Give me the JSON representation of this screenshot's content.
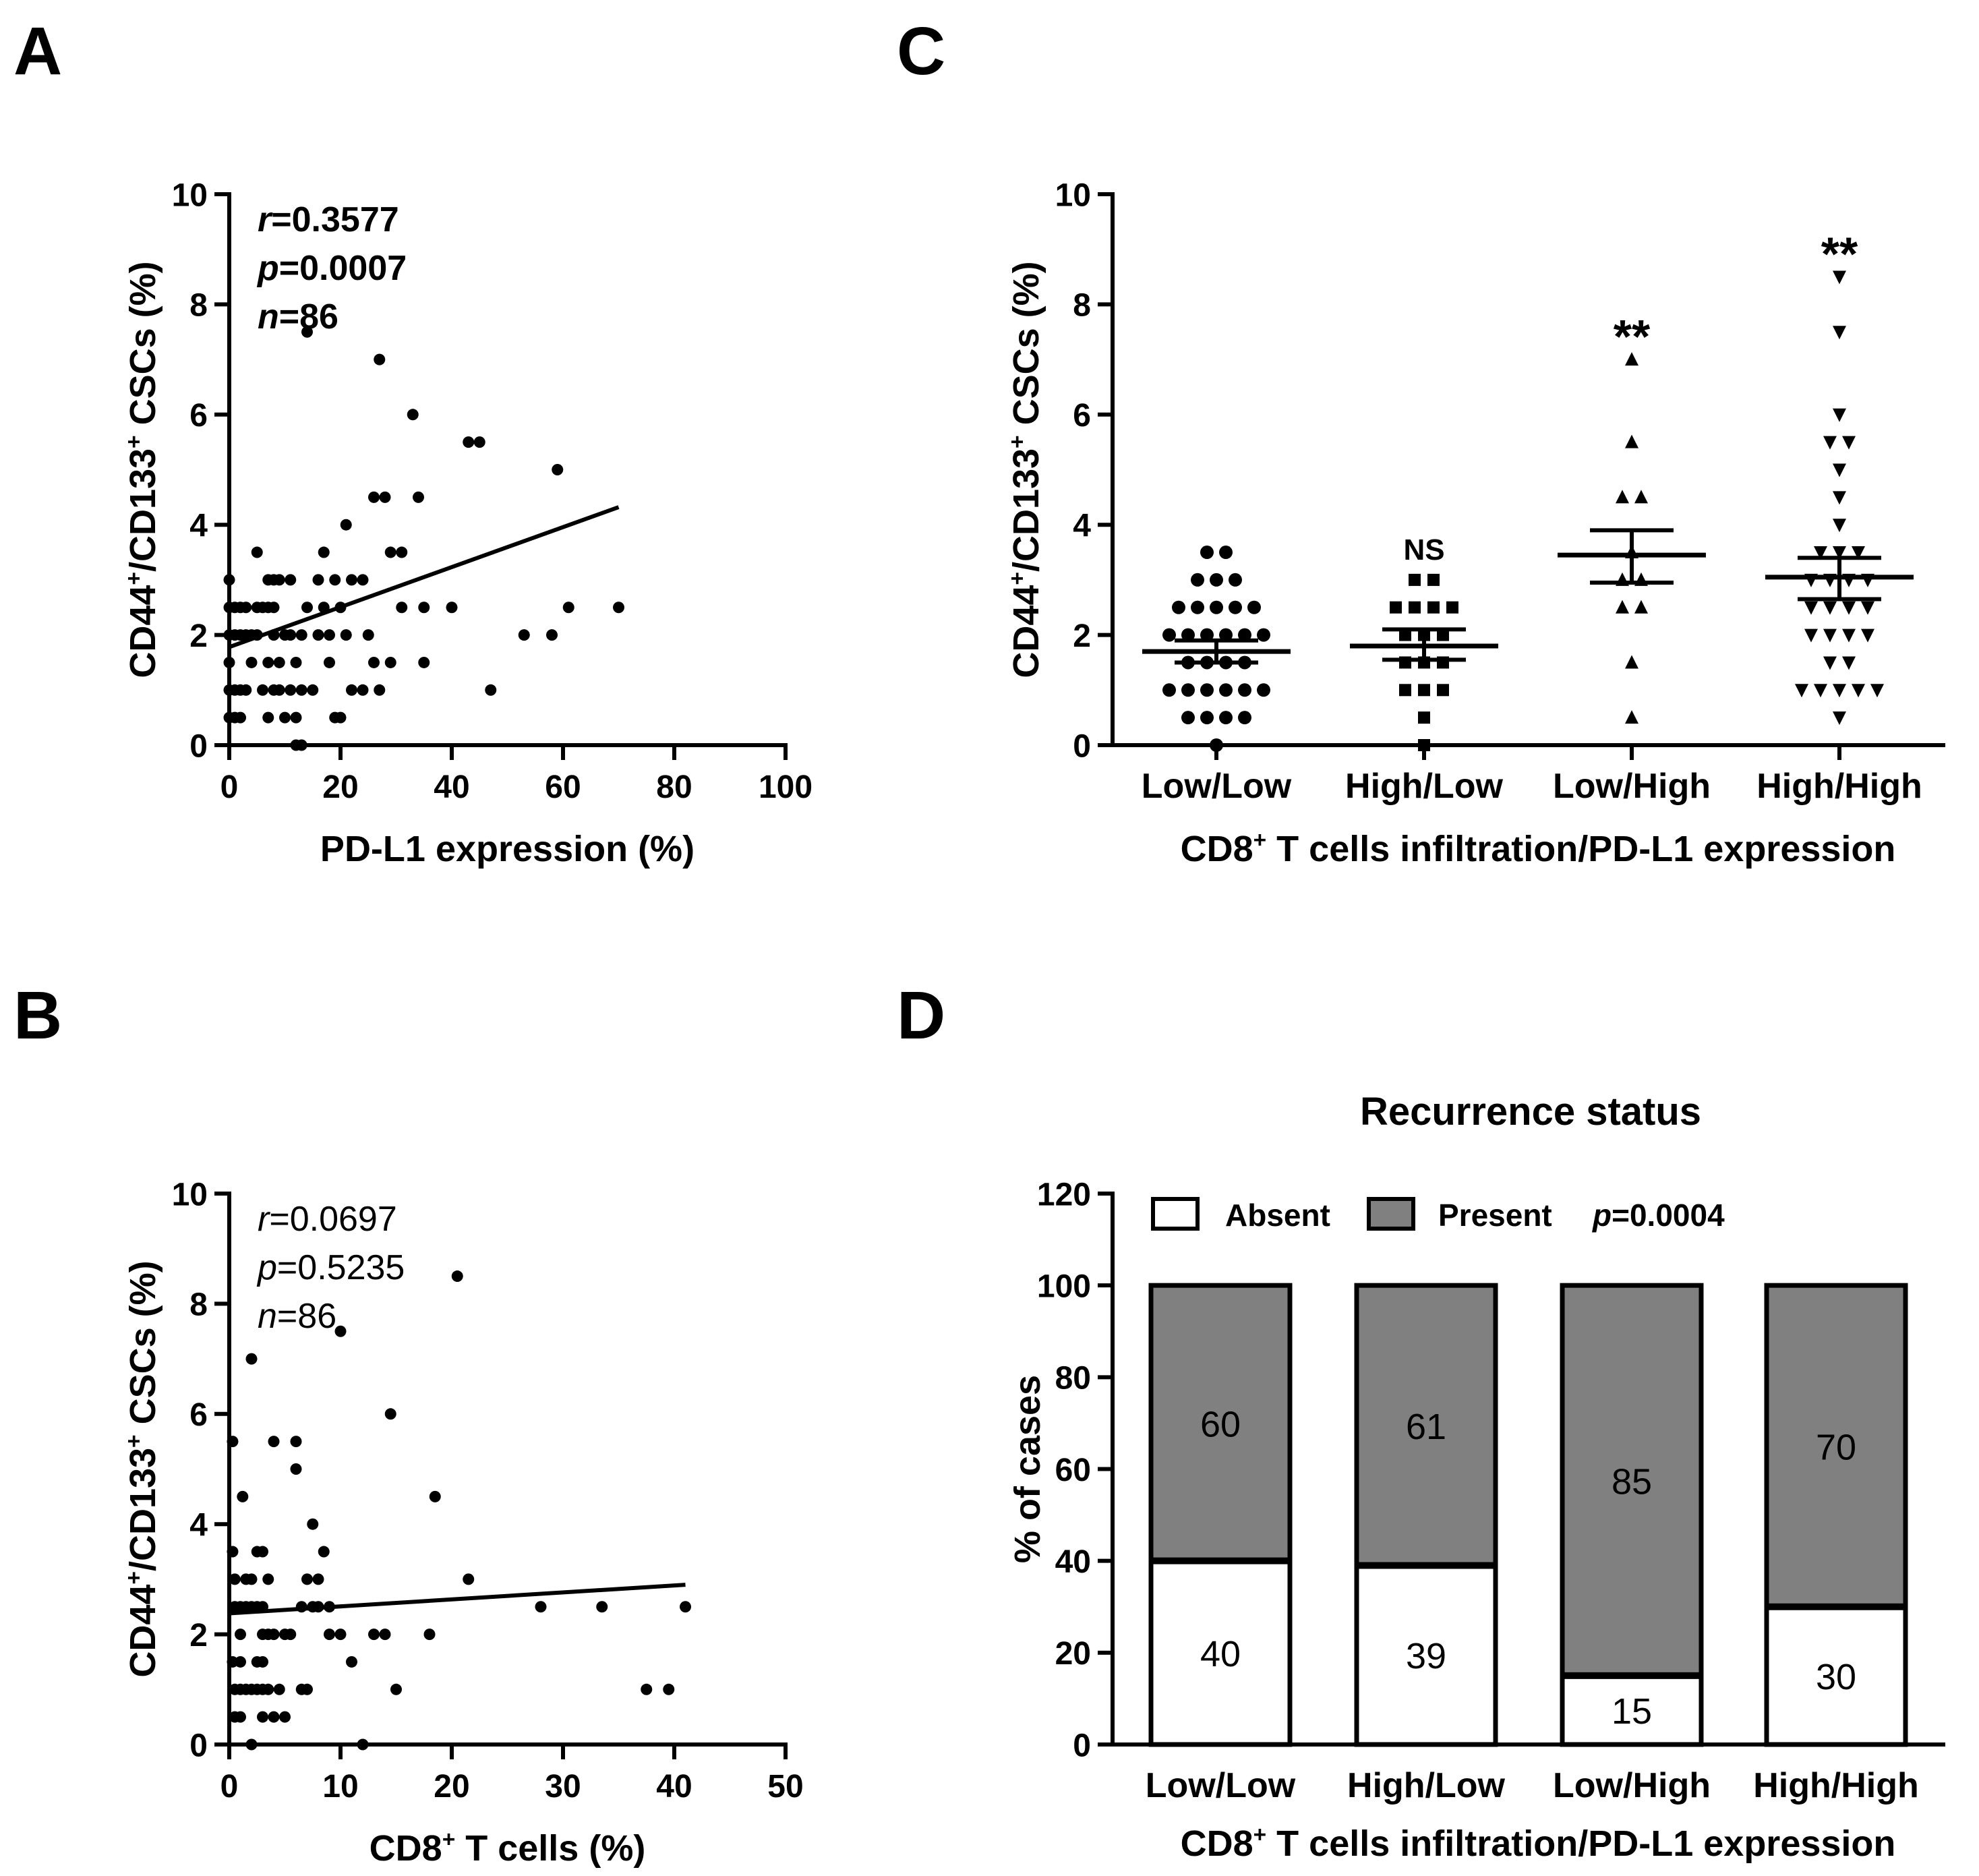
{
  "panel_letters": [
    "A",
    "B",
    "C",
    "D"
  ],
  "chart_data": [
    {
      "panel": "A",
      "type": "scatter",
      "xlabel": "PD-L1 expression (%)",
      "ylabel_parts": [
        "CD44",
        "+",
        "/CD133",
        "+",
        " CSCs (%)"
      ],
      "xlim": [
        0,
        100
      ],
      "ylim": [
        0,
        10
      ],
      "xticks": [
        0,
        20,
        40,
        60,
        80,
        100
      ],
      "yticks": [
        0,
        2,
        4,
        6,
        8,
        10
      ],
      "stats": [
        {
          "sym": "r",
          "val": "=0.3577"
        },
        {
          "sym": "p",
          "val": "=0.0007"
        },
        {
          "sym": "n",
          "val": "=86"
        }
      ],
      "fit": {
        "x": [
          0,
          70
        ],
        "y": [
          1.78,
          4.32
        ]
      },
      "points": [
        [
          0,
          0.5
        ],
        [
          0,
          1
        ],
        [
          0,
          1.5
        ],
        [
          0,
          2
        ],
        [
          0,
          2.5
        ],
        [
          0,
          3
        ],
        [
          1,
          0.5
        ],
        [
          1,
          1
        ],
        [
          1,
          2
        ],
        [
          1,
          2.5
        ],
        [
          2,
          0.5
        ],
        [
          2,
          1
        ],
        [
          2,
          2
        ],
        [
          2,
          2.5
        ],
        [
          3,
          1
        ],
        [
          3,
          2
        ],
        [
          3,
          2.5
        ],
        [
          4,
          1.5
        ],
        [
          4,
          2
        ],
        [
          5,
          2
        ],
        [
          5,
          2.5
        ],
        [
          5,
          3.5
        ],
        [
          6,
          1
        ],
        [
          6,
          2.5
        ],
        [
          7,
          0.5
        ],
        [
          7,
          1.5
        ],
        [
          7,
          2.5
        ],
        [
          7,
          3
        ],
        [
          8,
          1
        ],
        [
          8,
          2
        ],
        [
          8,
          2.5
        ],
        [
          8,
          3
        ],
        [
          9,
          1
        ],
        [
          9,
          1.5
        ],
        [
          9,
          3
        ],
        [
          10,
          0.5
        ],
        [
          10,
          2
        ],
        [
          11,
          1
        ],
        [
          11,
          2
        ],
        [
          11,
          3
        ],
        [
          12,
          0
        ],
        [
          12,
          0.5
        ],
        [
          12,
          1.5
        ],
        [
          13,
          0
        ],
        [
          13,
          1
        ],
        [
          13,
          2
        ],
        [
          14,
          2.5
        ],
        [
          14,
          7.5
        ],
        [
          15,
          1
        ],
        [
          16,
          2
        ],
        [
          16,
          3
        ],
        [
          17,
          2.5
        ],
        [
          17,
          3.5
        ],
        [
          18,
          1.5
        ],
        [
          18,
          2
        ],
        [
          19,
          0.5
        ],
        [
          19,
          3
        ],
        [
          20,
          0.5
        ],
        [
          20,
          2.5
        ],
        [
          21,
          2
        ],
        [
          21,
          4
        ],
        [
          22,
          1
        ],
        [
          22,
          3
        ],
        [
          24,
          1
        ],
        [
          24,
          3
        ],
        [
          25,
          2
        ],
        [
          26,
          1.5
        ],
        [
          26,
          4.5
        ],
        [
          27,
          1
        ],
        [
          27,
          7
        ],
        [
          28,
          4.5
        ],
        [
          29,
          1.5
        ],
        [
          29,
          3.5
        ],
        [
          31,
          3.5
        ],
        [
          31,
          2.5
        ],
        [
          33,
          6
        ],
        [
          34,
          4.5
        ],
        [
          35,
          1.5
        ],
        [
          35,
          2.5
        ],
        [
          40,
          2.5
        ],
        [
          43,
          5.5
        ],
        [
          45,
          5.5
        ],
        [
          47,
          1
        ],
        [
          53,
          2
        ],
        [
          58,
          2
        ],
        [
          59,
          5
        ],
        [
          61,
          2.5
        ],
        [
          70,
          2.5
        ]
      ]
    },
    {
      "panel": "B",
      "type": "scatter",
      "xlabel_parts": [
        "CD8",
        "+",
        " T cells (%)"
      ],
      "ylabel_parts": [
        "CD44",
        "+",
        "/CD133",
        "+",
        " CSCs (%)"
      ],
      "xlim": [
        0,
        50
      ],
      "ylim": [
        0,
        10
      ],
      "xticks": [
        0,
        10,
        20,
        30,
        40,
        50
      ],
      "yticks": [
        0,
        2,
        4,
        6,
        8,
        10
      ],
      "stats": [
        {
          "sym": "r",
          "val": "=0.0697"
        },
        {
          "sym": "p",
          "val": "=0.5235"
        },
        {
          "sym": "n",
          "val": "=86"
        }
      ],
      "fit": {
        "x": [
          0,
          41
        ],
        "y": [
          2.38,
          2.9
        ]
      },
      "points": [
        [
          0.3,
          5.5
        ],
        [
          0.3,
          3.5
        ],
        [
          0.3,
          1.5
        ],
        [
          0.5,
          3
        ],
        [
          0.5,
          2.5
        ],
        [
          0.5,
          1
        ],
        [
          0.5,
          0.5
        ],
        [
          1,
          2.5
        ],
        [
          1,
          2
        ],
        [
          1,
          1.5
        ],
        [
          1,
          1
        ],
        [
          1,
          0.5
        ],
        [
          1.2,
          4.5
        ],
        [
          1.5,
          3
        ],
        [
          1.5,
          2.5
        ],
        [
          1.5,
          1
        ],
        [
          2,
          7
        ],
        [
          2,
          3
        ],
        [
          2,
          2.5
        ],
        [
          2,
          1
        ],
        [
          2,
          0
        ],
        [
          2.5,
          3.5
        ],
        [
          2.5,
          2.5
        ],
        [
          2.5,
          1.5
        ],
        [
          2.5,
          1
        ],
        [
          3,
          3.5
        ],
        [
          3,
          2.5
        ],
        [
          3,
          2
        ],
        [
          3,
          1.5
        ],
        [
          3,
          1
        ],
        [
          3,
          0.5
        ],
        [
          3.5,
          3
        ],
        [
          3.5,
          2
        ],
        [
          3.5,
          1
        ],
        [
          4,
          5.5
        ],
        [
          4,
          2
        ],
        [
          4,
          0.5
        ],
        [
          4.5,
          1
        ],
        [
          5,
          2
        ],
        [
          5,
          0.5
        ],
        [
          5.5,
          2
        ],
        [
          6,
          5.5
        ],
        [
          6,
          5
        ],
        [
          6.5,
          2.5
        ],
        [
          6.5,
          1
        ],
        [
          7,
          3
        ],
        [
          7,
          1
        ],
        [
          7.5,
          4
        ],
        [
          7.5,
          2.5
        ],
        [
          8,
          3
        ],
        [
          8,
          2.5
        ],
        [
          8.5,
          3.5
        ],
        [
          9,
          2.5
        ],
        [
          9,
          2
        ],
        [
          10,
          7.5
        ],
        [
          10,
          2
        ],
        [
          11,
          1.5
        ],
        [
          12,
          0
        ],
        [
          13,
          2
        ],
        [
          14,
          2
        ],
        [
          14.5,
          6
        ],
        [
          15,
          1
        ],
        [
          18,
          2
        ],
        [
          18.5,
          4.5
        ],
        [
          20.5,
          8.5
        ],
        [
          21.5,
          3
        ],
        [
          28,
          2.5
        ],
        [
          33.5,
          2.5
        ],
        [
          37.5,
          1
        ],
        [
          39.5,
          1
        ],
        [
          41,
          2.5
        ]
      ]
    },
    {
      "panel": "C",
      "type": "scatter",
      "xlabel_parts": [
        "CD8",
        "+",
        " T cells infiltration/PD-L1 expression"
      ],
      "ylabel_parts": [
        "CD44",
        "+",
        "/CD133",
        "+",
        " CSCs (%)"
      ],
      "ylim": [
        0,
        10
      ],
      "yticks": [
        0,
        2,
        4,
        6,
        8,
        10
      ],
      "categories": [
        "Low/Low",
        "High/Low",
        "Low/High",
        "High/High"
      ],
      "series": [
        {
          "name": "Low/Low",
          "marker": "circle",
          "mean": 1.7,
          "sem_low": 1.5,
          "sem_high": 1.9,
          "annotation": "",
          "values": [
            3.5,
            3.5,
            3,
            3,
            3,
            2.5,
            2.5,
            2.5,
            2.5,
            2.5,
            2,
            2,
            2,
            2,
            2,
            2,
            1.5,
            1.5,
            1.5,
            1.5,
            1,
            1,
            1,
            1,
            1,
            1,
            0.5,
            0.5,
            0.5,
            0.5,
            0
          ]
        },
        {
          "name": "High/Low",
          "marker": "square",
          "mean": 1.8,
          "sem_low": 1.55,
          "sem_high": 2.1,
          "annotation": "NS",
          "values": [
            3,
            3,
            2.5,
            2.5,
            2.5,
            2.5,
            2,
            2,
            2,
            1.5,
            1.5,
            1.5,
            1,
            1,
            1,
            0.5,
            0
          ]
        },
        {
          "name": "Low/High",
          "marker": "triangle",
          "mean": 3.45,
          "sem_low": 2.95,
          "sem_high": 3.9,
          "annotation": "**",
          "values": [
            7,
            5.5,
            4.5,
            4.5,
            3.5,
            3,
            3,
            2.5,
            2.5,
            1.5,
            0.5
          ]
        },
        {
          "name": "High/High",
          "marker": "triangle-down",
          "mean": 3.05,
          "sem_low": 2.65,
          "sem_high": 3.4,
          "annotation": "**",
          "values": [
            8.5,
            7.5,
            6,
            5.5,
            5.5,
            5,
            4.5,
            4,
            3.5,
            3.5,
            3.5,
            3,
            3,
            3,
            3,
            2.5,
            2.5,
            2.5,
            2.5,
            2,
            2,
            2,
            2,
            1.5,
            1.5,
            1,
            1,
            1,
            1,
            1,
            0.5
          ]
        }
      ]
    },
    {
      "panel": "D",
      "type": "bar",
      "stacked": true,
      "title": "Recurrence status",
      "ylabel": "% of cases",
      "xlabel_parts": [
        "CD8",
        "+",
        " T cells infiltration/PD-L1 expression"
      ],
      "ylim": [
        0,
        120
      ],
      "yticks": [
        0,
        20,
        40,
        60,
        80,
        100,
        120
      ],
      "categories": [
        "Low/Low",
        "High/Low",
        "Low/High",
        "High/High"
      ],
      "series": [
        {
          "name": "Absent",
          "color": "#ffffff",
          "values": [
            40,
            39,
            15,
            30
          ]
        },
        {
          "name": "Present",
          "color": "#808080",
          "values": [
            60,
            61,
            85,
            70
          ]
        }
      ],
      "legend_p": {
        "sym": "p",
        "val": "=0.0004"
      }
    }
  ]
}
